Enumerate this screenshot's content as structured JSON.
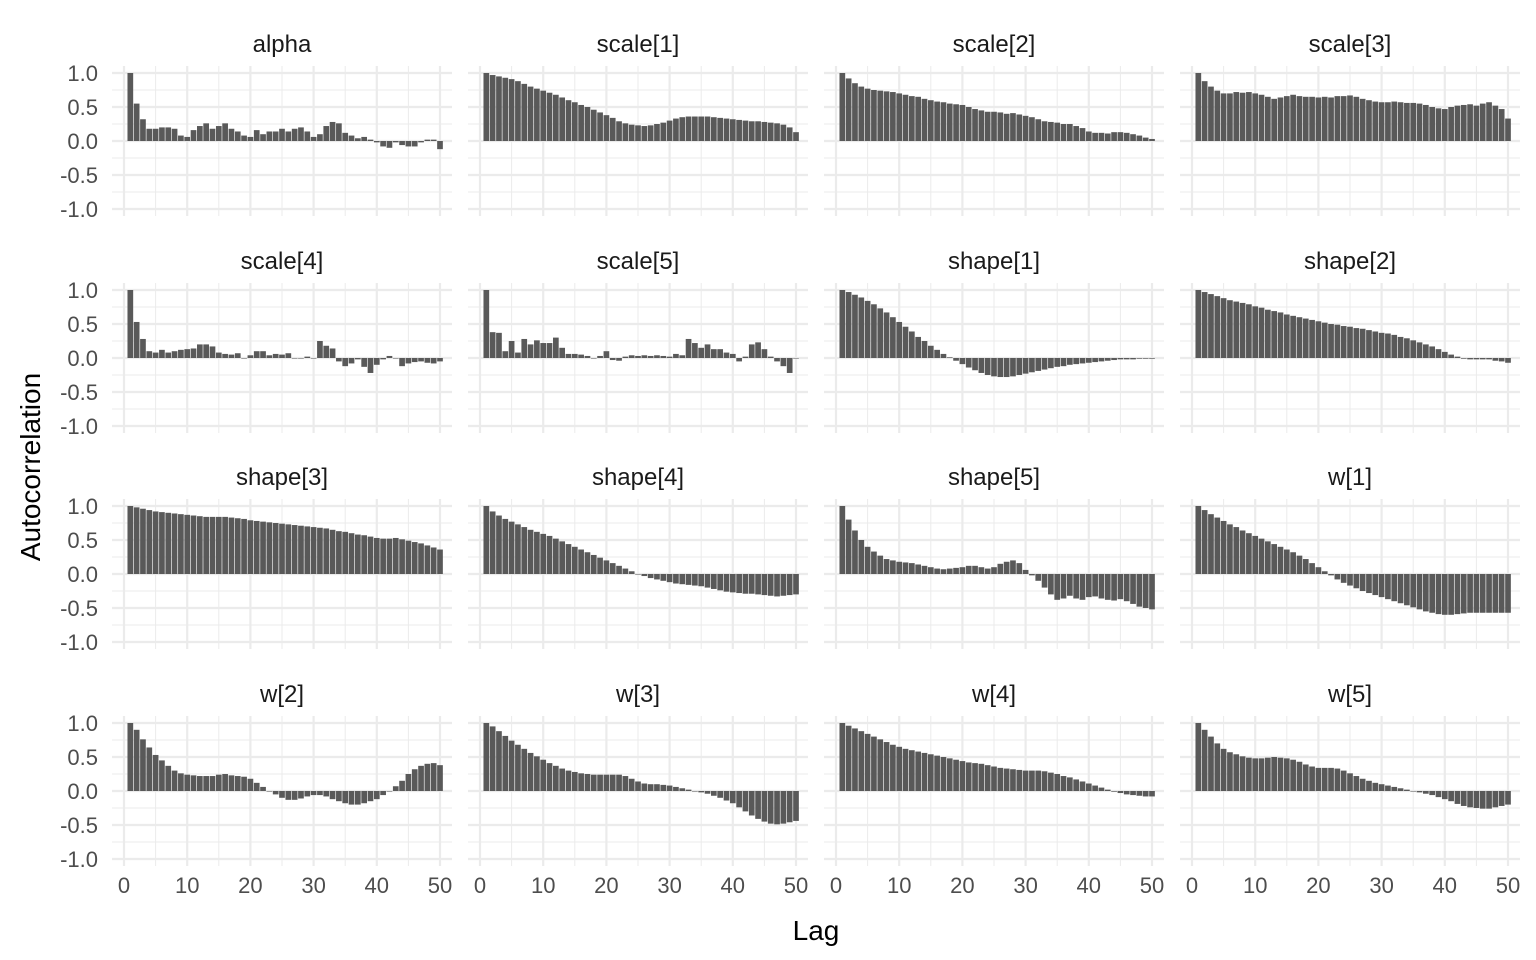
{
  "chart_data": {
    "type": "bar",
    "title": "",
    "xlabel": "Lag",
    "ylabel": "Autocorrelation",
    "xlim": [
      0,
      50
    ],
    "ylim": [
      -1.0,
      1.0
    ],
    "x_ticks": [
      "0",
      "10",
      "20",
      "30",
      "40",
      "50"
    ],
    "y_ticks": [
      "1.0",
      "0.5",
      "0.0",
      "-0.5",
      "-1.0"
    ],
    "grid": true,
    "lags": [
      1,
      2,
      3,
      4,
      5,
      6,
      7,
      8,
      9,
      10,
      11,
      12,
      13,
      14,
      15,
      16,
      17,
      18,
      19,
      20,
      21,
      22,
      23,
      24,
      25,
      26,
      27,
      28,
      29,
      30,
      31,
      32,
      33,
      34,
      35,
      36,
      37,
      38,
      39,
      40,
      41,
      42,
      43,
      44,
      45,
      46,
      47,
      48,
      49,
      50
    ],
    "panels": [
      {
        "title": "alpha",
        "values": [
          1.0,
          0.55,
          0.32,
          0.18,
          0.18,
          0.2,
          0.2,
          0.18,
          0.08,
          0.06,
          0.16,
          0.22,
          0.26,
          0.18,
          0.22,
          0.26,
          0.18,
          0.14,
          0.08,
          0.06,
          0.16,
          0.1,
          0.14,
          0.14,
          0.18,
          0.14,
          0.18,
          0.2,
          0.14,
          0.06,
          0.1,
          0.22,
          0.28,
          0.26,
          0.12,
          0.08,
          0.04,
          0.06,
          0.02,
          -0.02,
          -0.08,
          -0.1,
          -0.02,
          -0.06,
          -0.08,
          -0.08,
          -0.02,
          0.02,
          0.02,
          -0.12
        ]
      },
      {
        "title": "scale[1]",
        "values": [
          1.0,
          0.97,
          0.95,
          0.93,
          0.91,
          0.88,
          0.84,
          0.8,
          0.77,
          0.74,
          0.71,
          0.68,
          0.64,
          0.6,
          0.57,
          0.53,
          0.5,
          0.46,
          0.42,
          0.38,
          0.34,
          0.29,
          0.26,
          0.24,
          0.23,
          0.22,
          0.23,
          0.25,
          0.27,
          0.3,
          0.33,
          0.35,
          0.36,
          0.36,
          0.36,
          0.36,
          0.35,
          0.34,
          0.33,
          0.32,
          0.31,
          0.3,
          0.29,
          0.29,
          0.28,
          0.27,
          0.26,
          0.24,
          0.2,
          0.13
        ]
      },
      {
        "title": "scale[2]",
        "values": [
          1.0,
          0.92,
          0.85,
          0.8,
          0.77,
          0.75,
          0.74,
          0.73,
          0.72,
          0.7,
          0.68,
          0.66,
          0.65,
          0.62,
          0.6,
          0.58,
          0.57,
          0.55,
          0.54,
          0.53,
          0.5,
          0.47,
          0.45,
          0.43,
          0.43,
          0.42,
          0.4,
          0.41,
          0.39,
          0.37,
          0.35,
          0.32,
          0.29,
          0.28,
          0.27,
          0.25,
          0.25,
          0.22,
          0.19,
          0.14,
          0.12,
          0.12,
          0.11,
          0.13,
          0.13,
          0.12,
          0.1,
          0.08,
          0.05,
          0.03
        ]
      },
      {
        "title": "scale[3]",
        "values": [
          1.0,
          0.88,
          0.8,
          0.74,
          0.7,
          0.7,
          0.72,
          0.71,
          0.72,
          0.7,
          0.68,
          0.65,
          0.62,
          0.64,
          0.66,
          0.68,
          0.66,
          0.65,
          0.65,
          0.64,
          0.65,
          0.64,
          0.66,
          0.66,
          0.67,
          0.65,
          0.62,
          0.6,
          0.58,
          0.57,
          0.57,
          0.58,
          0.57,
          0.56,
          0.56,
          0.55,
          0.53,
          0.5,
          0.48,
          0.47,
          0.5,
          0.52,
          0.53,
          0.54,
          0.52,
          0.55,
          0.57,
          0.52,
          0.47,
          0.33
        ]
      },
      {
        "title": "scale[4]",
        "values": [
          1.0,
          0.53,
          0.28,
          0.1,
          0.08,
          0.12,
          0.08,
          0.1,
          0.12,
          0.13,
          0.14,
          0.2,
          0.2,
          0.17,
          0.08,
          0.06,
          0.05,
          0.07,
          0.0,
          0.04,
          0.1,
          0.1,
          0.04,
          0.06,
          0.05,
          0.07,
          0.0,
          0.0,
          0.02,
          0.0,
          0.25,
          0.18,
          0.14,
          -0.05,
          -0.12,
          -0.08,
          -0.02,
          -0.13,
          -0.22,
          -0.1,
          -0.02,
          0.03,
          0.0,
          -0.12,
          -0.08,
          -0.06,
          -0.05,
          -0.07,
          -0.08,
          -0.05
        ]
      },
      {
        "title": "scale[5]",
        "values": [
          1.0,
          0.38,
          0.37,
          0.1,
          0.25,
          0.08,
          0.28,
          0.2,
          0.26,
          0.22,
          0.22,
          0.3,
          0.15,
          0.06,
          0.06,
          0.05,
          0.03,
          0.0,
          0.03,
          0.1,
          -0.03,
          -0.04,
          0.02,
          0.04,
          0.03,
          0.04,
          0.03,
          0.04,
          0.03,
          0.02,
          0.06,
          0.04,
          0.28,
          0.22,
          0.15,
          0.2,
          0.13,
          0.13,
          0.08,
          0.06,
          -0.05,
          0.02,
          0.2,
          0.23,
          0.13,
          0.02,
          -0.05,
          -0.12,
          -0.22,
          0.0
        ]
      },
      {
        "title": "shape[1]",
        "values": [
          1.0,
          0.97,
          0.93,
          0.89,
          0.84,
          0.79,
          0.73,
          0.67,
          0.6,
          0.53,
          0.46,
          0.39,
          0.31,
          0.25,
          0.18,
          0.12,
          0.06,
          0.01,
          -0.04,
          -0.09,
          -0.14,
          -0.18,
          -0.22,
          -0.25,
          -0.27,
          -0.28,
          -0.28,
          -0.27,
          -0.25,
          -0.23,
          -0.21,
          -0.19,
          -0.17,
          -0.15,
          -0.13,
          -0.12,
          -0.1,
          -0.09,
          -0.08,
          -0.07,
          -0.06,
          -0.05,
          -0.04,
          -0.03,
          -0.02,
          -0.02,
          -0.02,
          -0.01,
          -0.01,
          -0.01
        ]
      },
      {
        "title": "shape[2]",
        "values": [
          1.0,
          0.97,
          0.94,
          0.91,
          0.88,
          0.85,
          0.83,
          0.81,
          0.79,
          0.76,
          0.74,
          0.71,
          0.69,
          0.67,
          0.64,
          0.62,
          0.6,
          0.58,
          0.56,
          0.54,
          0.52,
          0.5,
          0.49,
          0.47,
          0.46,
          0.44,
          0.43,
          0.41,
          0.39,
          0.37,
          0.36,
          0.34,
          0.31,
          0.29,
          0.26,
          0.23,
          0.2,
          0.17,
          0.13,
          0.09,
          0.05,
          0.02,
          -0.01,
          -0.02,
          -0.02,
          -0.02,
          -0.02,
          -0.04,
          -0.05,
          -0.07
        ]
      },
      {
        "title": "shape[3]",
        "values": [
          1.0,
          0.98,
          0.96,
          0.94,
          0.92,
          0.91,
          0.9,
          0.89,
          0.88,
          0.87,
          0.86,
          0.85,
          0.84,
          0.84,
          0.84,
          0.84,
          0.83,
          0.82,
          0.81,
          0.79,
          0.78,
          0.77,
          0.76,
          0.75,
          0.74,
          0.73,
          0.72,
          0.71,
          0.7,
          0.69,
          0.68,
          0.67,
          0.65,
          0.63,
          0.62,
          0.6,
          0.58,
          0.57,
          0.55,
          0.53,
          0.52,
          0.52,
          0.53,
          0.51,
          0.49,
          0.47,
          0.45,
          0.42,
          0.39,
          0.36
        ]
      },
      {
        "title": "shape[4]",
        "values": [
          1.0,
          0.92,
          0.86,
          0.81,
          0.77,
          0.73,
          0.69,
          0.65,
          0.62,
          0.59,
          0.56,
          0.52,
          0.48,
          0.44,
          0.4,
          0.36,
          0.32,
          0.28,
          0.24,
          0.2,
          0.16,
          0.12,
          0.08,
          0.04,
          0.0,
          -0.03,
          -0.06,
          -0.08,
          -0.1,
          -0.12,
          -0.14,
          -0.15,
          -0.16,
          -0.17,
          -0.18,
          -0.2,
          -0.22,
          -0.24,
          -0.26,
          -0.27,
          -0.28,
          -0.29,
          -0.29,
          -0.3,
          -0.31,
          -0.32,
          -0.33,
          -0.32,
          -0.31,
          -0.3
        ]
      },
      {
        "title": "shape[5]",
        "values": [
          1.0,
          0.8,
          0.64,
          0.5,
          0.4,
          0.33,
          0.27,
          0.22,
          0.2,
          0.18,
          0.17,
          0.16,
          0.14,
          0.12,
          0.1,
          0.08,
          0.07,
          0.08,
          0.09,
          0.1,
          0.12,
          0.12,
          0.1,
          0.08,
          0.1,
          0.15,
          0.18,
          0.2,
          0.16,
          0.06,
          -0.02,
          -0.1,
          -0.2,
          -0.3,
          -0.38,
          -0.36,
          -0.32,
          -0.36,
          -0.38,
          -0.34,
          -0.33,
          -0.36,
          -0.38,
          -0.39,
          -0.37,
          -0.4,
          -0.44,
          -0.48,
          -0.5,
          -0.52
        ]
      },
      {
        "title": "w[1]",
        "values": [
          1.0,
          0.94,
          0.88,
          0.83,
          0.78,
          0.73,
          0.69,
          0.64,
          0.6,
          0.56,
          0.52,
          0.48,
          0.44,
          0.4,
          0.36,
          0.32,
          0.27,
          0.22,
          0.16,
          0.1,
          0.04,
          -0.02,
          -0.08,
          -0.13,
          -0.17,
          -0.21,
          -0.25,
          -0.28,
          -0.31,
          -0.34,
          -0.37,
          -0.4,
          -0.43,
          -0.46,
          -0.49,
          -0.52,
          -0.55,
          -0.57,
          -0.59,
          -0.6,
          -0.6,
          -0.59,
          -0.58,
          -0.57,
          -0.57,
          -0.57,
          -0.57,
          -0.57,
          -0.57,
          -0.57
        ]
      },
      {
        "title": "w[2]",
        "values": [
          1.0,
          0.9,
          0.76,
          0.64,
          0.53,
          0.45,
          0.37,
          0.3,
          0.26,
          0.24,
          0.23,
          0.22,
          0.22,
          0.22,
          0.24,
          0.25,
          0.23,
          0.22,
          0.21,
          0.18,
          0.12,
          0.06,
          0.0,
          -0.05,
          -0.1,
          -0.13,
          -0.13,
          -0.11,
          -0.08,
          -0.06,
          -0.06,
          -0.08,
          -0.12,
          -0.15,
          -0.18,
          -0.2,
          -0.2,
          -0.18,
          -0.15,
          -0.12,
          -0.06,
          0.0,
          0.07,
          0.15,
          0.25,
          0.32,
          0.37,
          0.4,
          0.41,
          0.38
        ]
      },
      {
        "title": "w[3]",
        "values": [
          1.0,
          0.95,
          0.88,
          0.81,
          0.74,
          0.68,
          0.62,
          0.56,
          0.51,
          0.46,
          0.41,
          0.37,
          0.33,
          0.3,
          0.28,
          0.26,
          0.25,
          0.24,
          0.24,
          0.24,
          0.24,
          0.24,
          0.22,
          0.18,
          0.14,
          0.11,
          0.1,
          0.1,
          0.09,
          0.08,
          0.06,
          0.04,
          0.02,
          0.0,
          -0.02,
          -0.04,
          -0.07,
          -0.1,
          -0.14,
          -0.18,
          -0.24,
          -0.3,
          -0.36,
          -0.41,
          -0.45,
          -0.48,
          -0.49,
          -0.48,
          -0.46,
          -0.44
        ]
      },
      {
        "title": "w[4]",
        "values": [
          1.0,
          0.96,
          0.92,
          0.88,
          0.84,
          0.8,
          0.76,
          0.72,
          0.68,
          0.65,
          0.62,
          0.6,
          0.58,
          0.56,
          0.54,
          0.52,
          0.5,
          0.48,
          0.46,
          0.44,
          0.42,
          0.41,
          0.4,
          0.38,
          0.36,
          0.34,
          0.33,
          0.32,
          0.31,
          0.3,
          0.3,
          0.3,
          0.29,
          0.27,
          0.25,
          0.22,
          0.2,
          0.17,
          0.14,
          0.11,
          0.08,
          0.05,
          0.02,
          -0.01,
          -0.03,
          -0.05,
          -0.06,
          -0.07,
          -0.08,
          -0.08
        ]
      },
      {
        "title": "w[5]",
        "values": [
          1.0,
          0.9,
          0.8,
          0.7,
          0.62,
          0.57,
          0.54,
          0.51,
          0.49,
          0.48,
          0.48,
          0.49,
          0.5,
          0.49,
          0.48,
          0.46,
          0.43,
          0.39,
          0.36,
          0.34,
          0.34,
          0.34,
          0.33,
          0.3,
          0.26,
          0.22,
          0.18,
          0.15,
          0.12,
          0.1,
          0.08,
          0.06,
          0.04,
          0.02,
          0.0,
          -0.02,
          -0.04,
          -0.06,
          -0.09,
          -0.12,
          -0.15,
          -0.19,
          -0.22,
          -0.24,
          -0.25,
          -0.26,
          -0.26,
          -0.24,
          -0.22,
          -0.2
        ]
      }
    ]
  },
  "colors": {
    "bar": "#595959",
    "grid": "#ebebeb",
    "tick_text": "#4d4d4d",
    "strip_text": "#1a1a1a",
    "background": "#ffffff"
  }
}
